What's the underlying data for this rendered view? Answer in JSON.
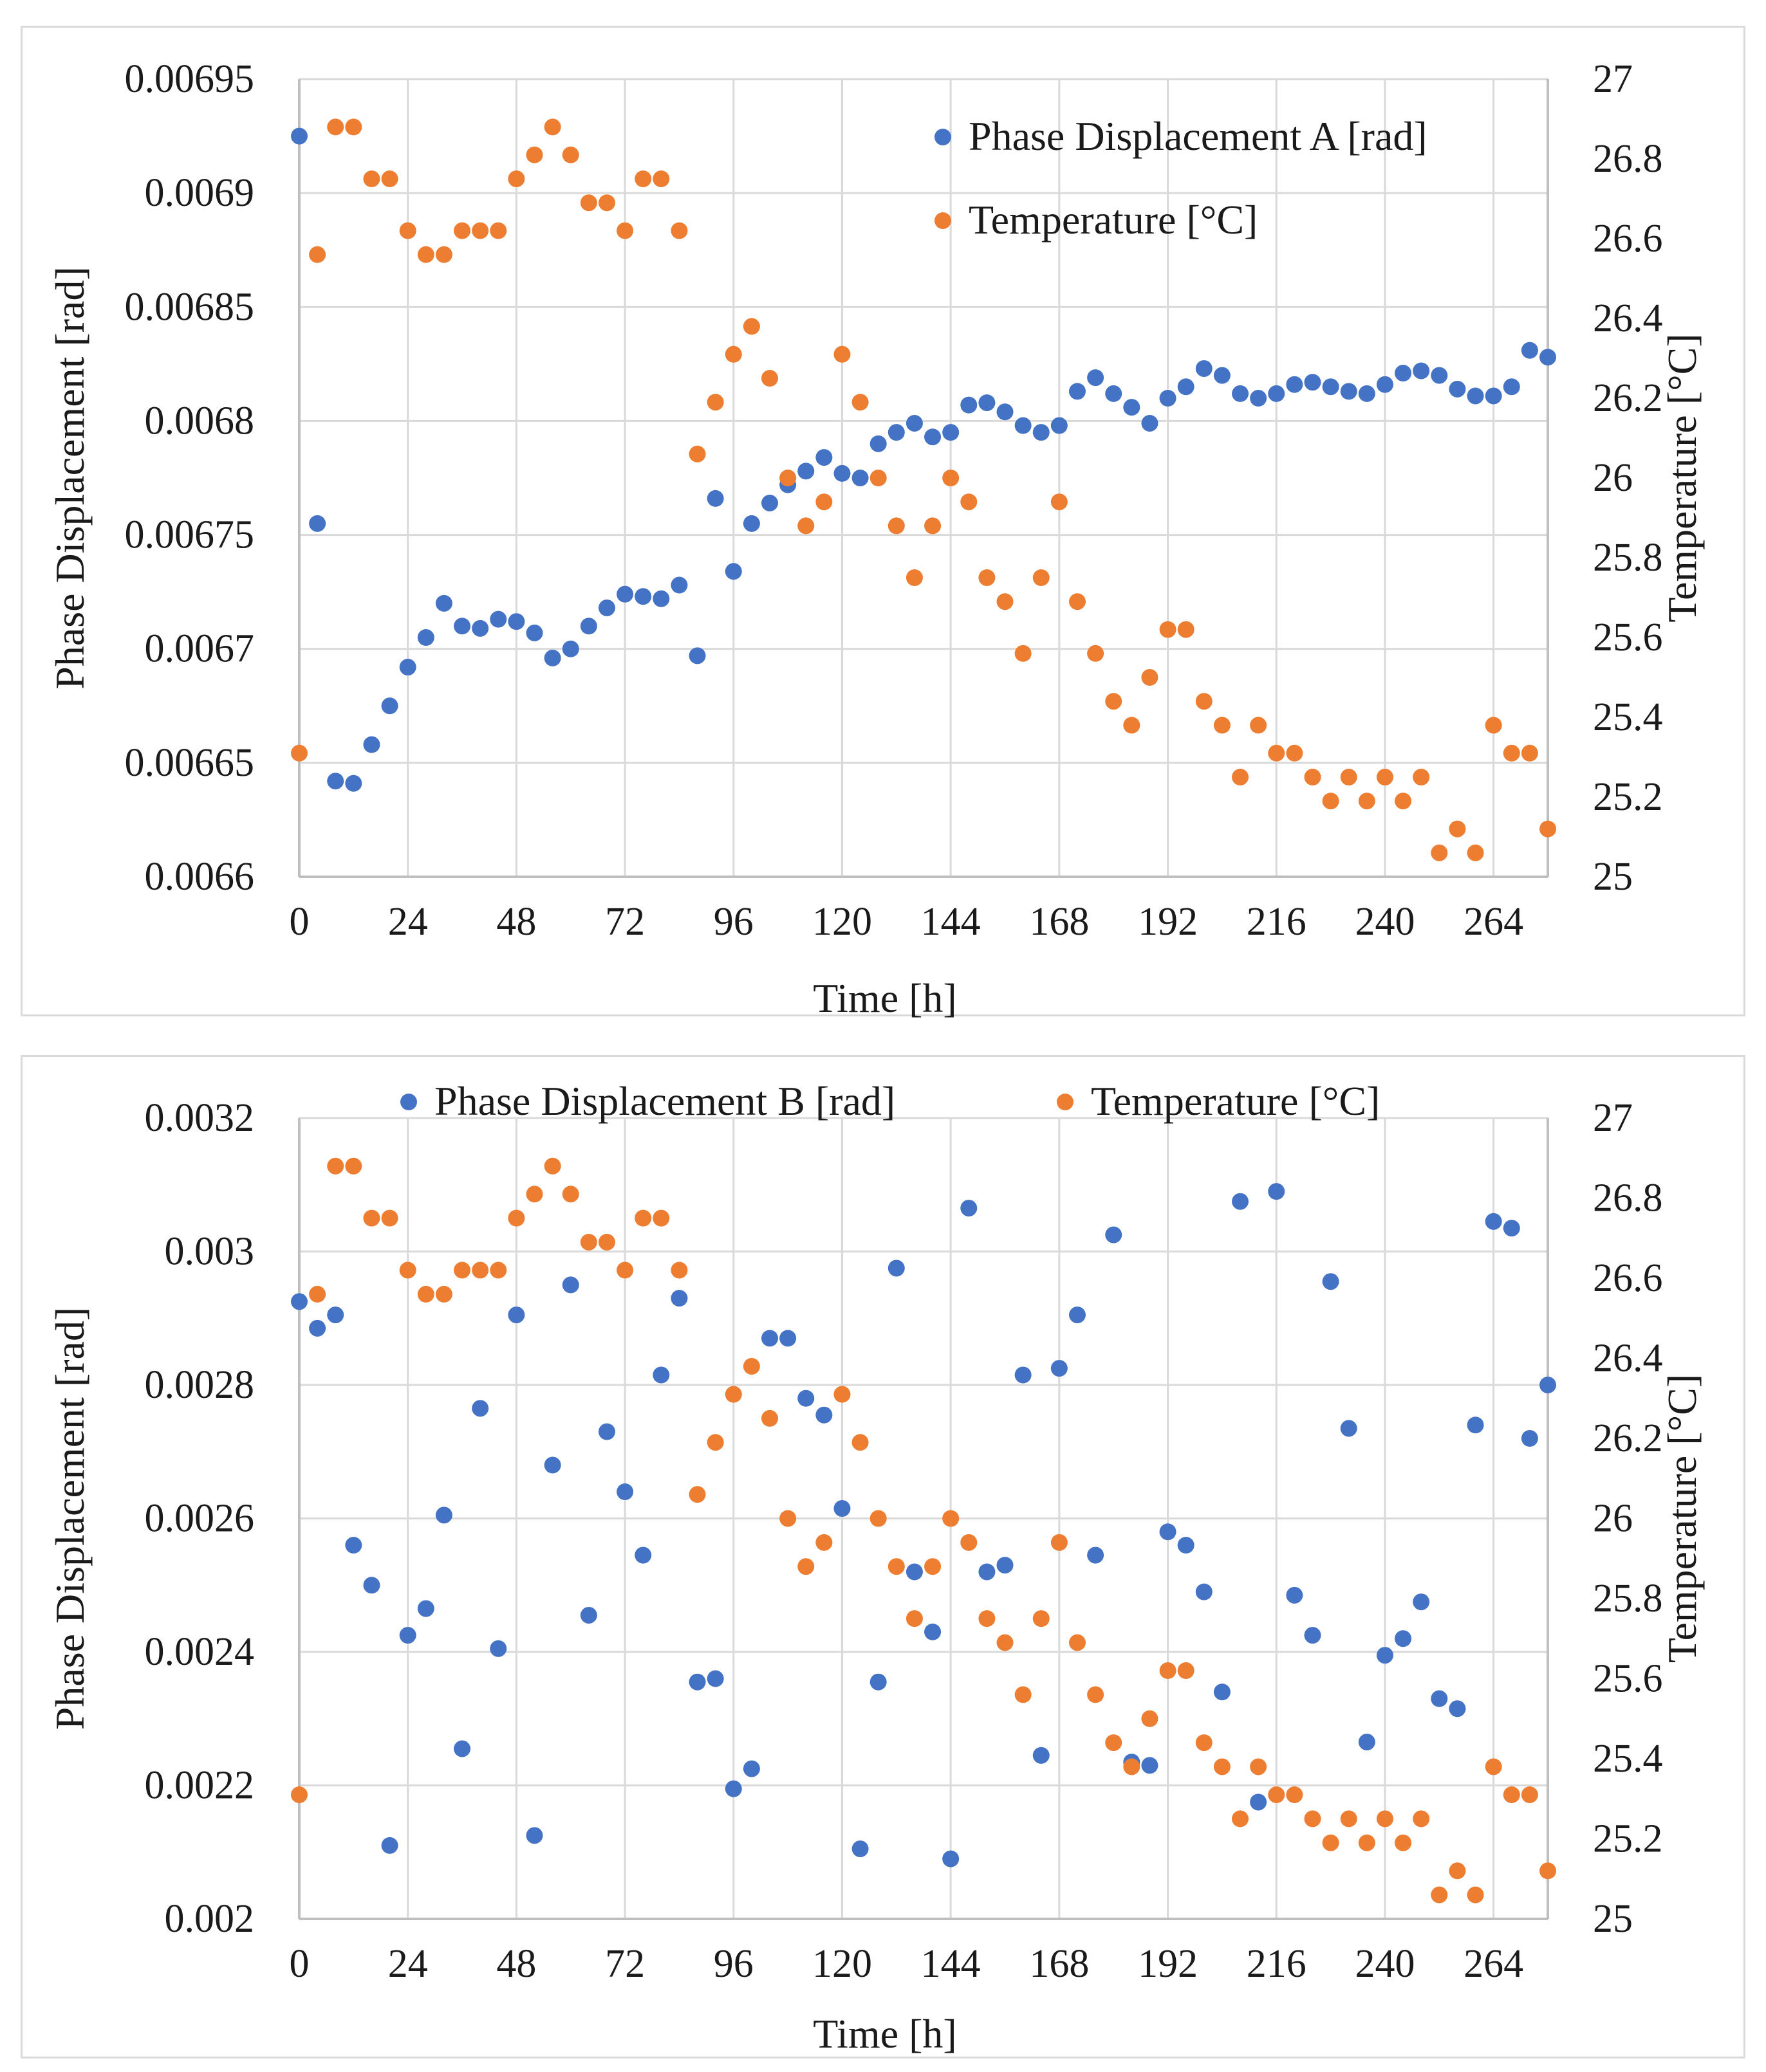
{
  "colors": {
    "phase": "#4472c4",
    "temperature": "#ed7d31",
    "gridline": "#d9d9d9",
    "axis": "#bfbfbf"
  },
  "chart_data": [
    {
      "type": "scatter",
      "title": "",
      "xlabel": "Time [h]",
      "ylabel": "Phase Displacement [rad]",
      "y2label": "Temperature [°C]",
      "xlim": [
        0,
        276
      ],
      "ylim": [
        0.0066,
        0.00695
      ],
      "y2lim": [
        25,
        27
      ],
      "xticks": [
        0,
        24,
        48,
        72,
        96,
        120,
        144,
        168,
        192,
        216,
        240,
        264
      ],
      "xtick_labels": [
        "0",
        "24",
        "48",
        "72",
        "96",
        "120",
        "144",
        "168",
        "192",
        "216",
        "240",
        "264"
      ],
      "yticks": [
        0.0066,
        0.00665,
        0.0067,
        0.00675,
        0.0068,
        0.00685,
        0.0069,
        0.00695
      ],
      "ytick_labels": [
        "0.0066",
        "0.00665",
        "0.0067",
        "0.00675",
        "0.0068",
        "0.00685",
        "0.0069",
        "0.00695"
      ],
      "y2ticks": [
        25,
        25.2,
        25.4,
        25.6,
        25.8,
        26,
        26.2,
        26.4,
        26.6,
        26.8,
        27
      ],
      "y2tick_labels": [
        "25",
        "25.2",
        "25.4",
        "25.6",
        "25.8",
        "26",
        "26.2",
        "26.4",
        "26.6",
        "26.8",
        "27"
      ],
      "grid": true,
      "legend_position": "top-right",
      "series": [
        {
          "name": "Phase Displacement A [rad]",
          "axis": "left",
          "color": "#4472c4",
          "x": [
            0,
            4,
            8,
            12,
            16,
            20,
            24,
            28,
            32,
            36,
            40,
            44,
            48,
            52,
            56,
            60,
            64,
            68,
            72,
            76,
            80,
            84,
            88,
            92,
            96,
            100,
            104,
            108,
            112,
            116,
            120,
            124,
            128,
            132,
            136,
            140,
            144,
            148,
            152,
            156,
            160,
            164,
            168,
            172,
            176,
            180,
            184,
            188,
            192,
            196,
            200,
            204,
            208,
            212,
            216,
            220,
            224,
            228,
            232,
            236,
            240,
            244,
            248,
            252,
            256,
            260,
            264,
            268,
            272,
            276
          ],
          "values": [
            0.006925,
            0.006755,
            0.006642,
            0.006641,
            0.006658,
            0.006675,
            0.006692,
            0.006705,
            0.00672,
            0.00671,
            0.006709,
            0.006713,
            0.006712,
            0.006707,
            0.006696,
            0.0067,
            0.00671,
            0.006718,
            0.006724,
            0.006723,
            0.006722,
            0.006728,
            0.006697,
            0.006766,
            0.006734,
            0.006755,
            0.006764,
            0.006772,
            0.006778,
            0.006784,
            0.006777,
            0.006775,
            0.00679,
            0.006795,
            0.006799,
            0.006793,
            0.006795,
            0.006807,
            0.006808,
            0.006804,
            0.006798,
            0.006795,
            0.006798,
            0.006813,
            0.006819,
            0.006812,
            0.006806,
            0.006799,
            0.00681,
            0.006815,
            0.006823,
            0.00682,
            0.006812,
            0.00681,
            0.006812,
            0.006816,
            0.006817,
            0.006815,
            0.006813,
            0.006812,
            0.006816,
            0.006821,
            0.006822,
            0.00682,
            0.006814,
            0.006811,
            0.006811,
            0.006815,
            0.006831,
            0.006828
          ]
        },
        {
          "name": "Temperature [°C]",
          "axis": "right",
          "color": "#ed7d31",
          "x": [
            0,
            4,
            8,
            12,
            16,
            20,
            24,
            28,
            32,
            36,
            40,
            44,
            48,
            52,
            56,
            60,
            64,
            68,
            72,
            76,
            80,
            84,
            88,
            92,
            96,
            100,
            104,
            108,
            112,
            116,
            120,
            124,
            128,
            132,
            136,
            140,
            144,
            148,
            152,
            156,
            160,
            164,
            168,
            172,
            176,
            180,
            184,
            188,
            192,
            196,
            200,
            204,
            208,
            212,
            216,
            220,
            224,
            228,
            232,
            236,
            240,
            244,
            248,
            252,
            256,
            260,
            264,
            268,
            272,
            276
          ],
          "values": [
            25.31,
            26.56,
            26.88,
            26.88,
            26.75,
            26.75,
            26.62,
            26.56,
            26.56,
            26.62,
            26.62,
            26.62,
            26.75,
            26.81,
            26.88,
            26.81,
            26.69,
            26.69,
            26.62,
            26.75,
            26.75,
            26.62,
            26.06,
            26.19,
            26.31,
            26.38,
            26.25,
            26.0,
            25.88,
            25.94,
            26.31,
            26.19,
            26.0,
            25.88,
            25.75,
            25.88,
            26.0,
            25.94,
            25.75,
            25.69,
            25.56,
            25.75,
            25.94,
            25.69,
            25.56,
            25.44,
            25.38,
            25.5,
            25.62,
            25.62,
            25.44,
            25.38,
            25.25,
            25.38,
            25.31,
            25.31,
            25.25,
            25.19,
            25.25,
            25.19,
            25.25,
            25.19,
            25.25,
            25.06,
            25.12,
            25.06,
            25.38,
            25.31,
            25.31,
            25.12
          ]
        }
      ]
    },
    {
      "type": "scatter",
      "title": "",
      "xlabel": "Time [h]",
      "ylabel": "Phase Displacement [rad]",
      "y2label": "Temperature [°C]",
      "xlim": [
        0,
        276
      ],
      "ylim": [
        0.002,
        0.0032
      ],
      "y2lim": [
        25,
        27
      ],
      "xticks": [
        0,
        24,
        48,
        72,
        96,
        120,
        144,
        168,
        192,
        216,
        240,
        264
      ],
      "xtick_labels": [
        "0",
        "24",
        "48",
        "72",
        "96",
        "120",
        "144",
        "168",
        "192",
        "216",
        "240",
        "264"
      ],
      "yticks": [
        0.002,
        0.0022,
        0.0024,
        0.0026,
        0.0028,
        0.003,
        0.0032
      ],
      "ytick_labels": [
        "0.002",
        "0.0022",
        "0.0024",
        "0.0026",
        "0.0028",
        "0.003",
        "0.0032"
      ],
      "y2ticks": [
        25,
        25.2,
        25.4,
        25.6,
        25.8,
        26,
        26.2,
        26.4,
        26.6,
        26.8,
        27
      ],
      "y2tick_labels": [
        "25",
        "25.2",
        "25.4",
        "25.6",
        "25.8",
        "26",
        "26.2",
        "26.4",
        "26.6",
        "26.8",
        "27"
      ],
      "grid": true,
      "legend_position": "top",
      "series": [
        {
          "name": "Phase Displacement B [rad]",
          "axis": "left",
          "color": "#4472c4",
          "x": [
            0,
            4,
            8,
            12,
            16,
            20,
            24,
            28,
            32,
            36,
            40,
            44,
            48,
            52,
            56,
            60,
            64,
            68,
            72,
            76,
            80,
            84,
            88,
            92,
            96,
            100,
            104,
            108,
            112,
            116,
            120,
            124,
            128,
            132,
            136,
            140,
            144,
            148,
            152,
            156,
            160,
            164,
            168,
            172,
            176,
            180,
            184,
            188,
            192,
            196,
            200,
            204,
            208,
            212,
            216,
            220,
            224,
            228,
            232,
            236,
            240,
            244,
            248,
            252,
            256,
            260,
            264,
            268,
            272,
            276
          ],
          "values": [
            0.002925,
            0.002885,
            0.002905,
            0.00256,
            0.0025,
            0.00211,
            0.002425,
            0.002465,
            0.002605,
            0.002255,
            0.002765,
            0.002405,
            0.002905,
            0.002125,
            0.00268,
            0.00295,
            0.002455,
            0.00273,
            0.00264,
            0.002545,
            0.002815,
            0.00293,
            0.002355,
            0.00236,
            0.002195,
            0.002225,
            0.00287,
            0.00287,
            0.00278,
            0.002755,
            0.002615,
            0.002105,
            0.002355,
            0.002975,
            0.00252,
            0.00243,
            0.00209,
            0.003065,
            0.00252,
            0.00253,
            0.002815,
            0.002245,
            0.002825,
            0.002905,
            0.002545,
            0.003025,
            0.002235,
            0.00223,
            0.00258,
            0.00256,
            0.00249,
            0.00234,
            0.003075,
            0.002175,
            0.00309,
            0.002485,
            0.002425,
            0.002955,
            0.002735,
            0.002265,
            0.002395,
            0.00242,
            0.002475,
            0.00233,
            0.002315,
            0.00274,
            0.003045,
            0.003035,
            0.00272,
            0.0028
          ]
        },
        {
          "name": "Temperature [°C]",
          "axis": "right",
          "color": "#ed7d31",
          "x": [
            0,
            4,
            8,
            12,
            16,
            20,
            24,
            28,
            32,
            36,
            40,
            44,
            48,
            52,
            56,
            60,
            64,
            68,
            72,
            76,
            80,
            84,
            88,
            92,
            96,
            100,
            104,
            108,
            112,
            116,
            120,
            124,
            128,
            132,
            136,
            140,
            144,
            148,
            152,
            156,
            160,
            164,
            168,
            172,
            176,
            180,
            184,
            188,
            192,
            196,
            200,
            204,
            208,
            212,
            216,
            220,
            224,
            228,
            232,
            236,
            240,
            244,
            248,
            252,
            256,
            260,
            264,
            268,
            272,
            276
          ],
          "values": [
            25.31,
            26.56,
            26.88,
            26.88,
            26.75,
            26.75,
            26.62,
            26.56,
            26.56,
            26.62,
            26.62,
            26.62,
            26.75,
            26.81,
            26.88,
            26.81,
            26.69,
            26.69,
            26.62,
            26.75,
            26.75,
            26.62,
            26.06,
            26.19,
            26.31,
            26.38,
            26.25,
            26.0,
            25.88,
            25.94,
            26.31,
            26.19,
            26.0,
            25.88,
            25.75,
            25.88,
            26.0,
            25.94,
            25.75,
            25.69,
            25.56,
            25.75,
            25.94,
            25.69,
            25.56,
            25.44,
            25.38,
            25.5,
            25.62,
            25.62,
            25.44,
            25.38,
            25.25,
            25.38,
            25.31,
            25.31,
            25.25,
            25.19,
            25.25,
            25.19,
            25.25,
            25.19,
            25.25,
            25.06,
            25.12,
            25.06,
            25.38,
            25.31,
            25.31,
            25.12
          ]
        }
      ]
    }
  ]
}
